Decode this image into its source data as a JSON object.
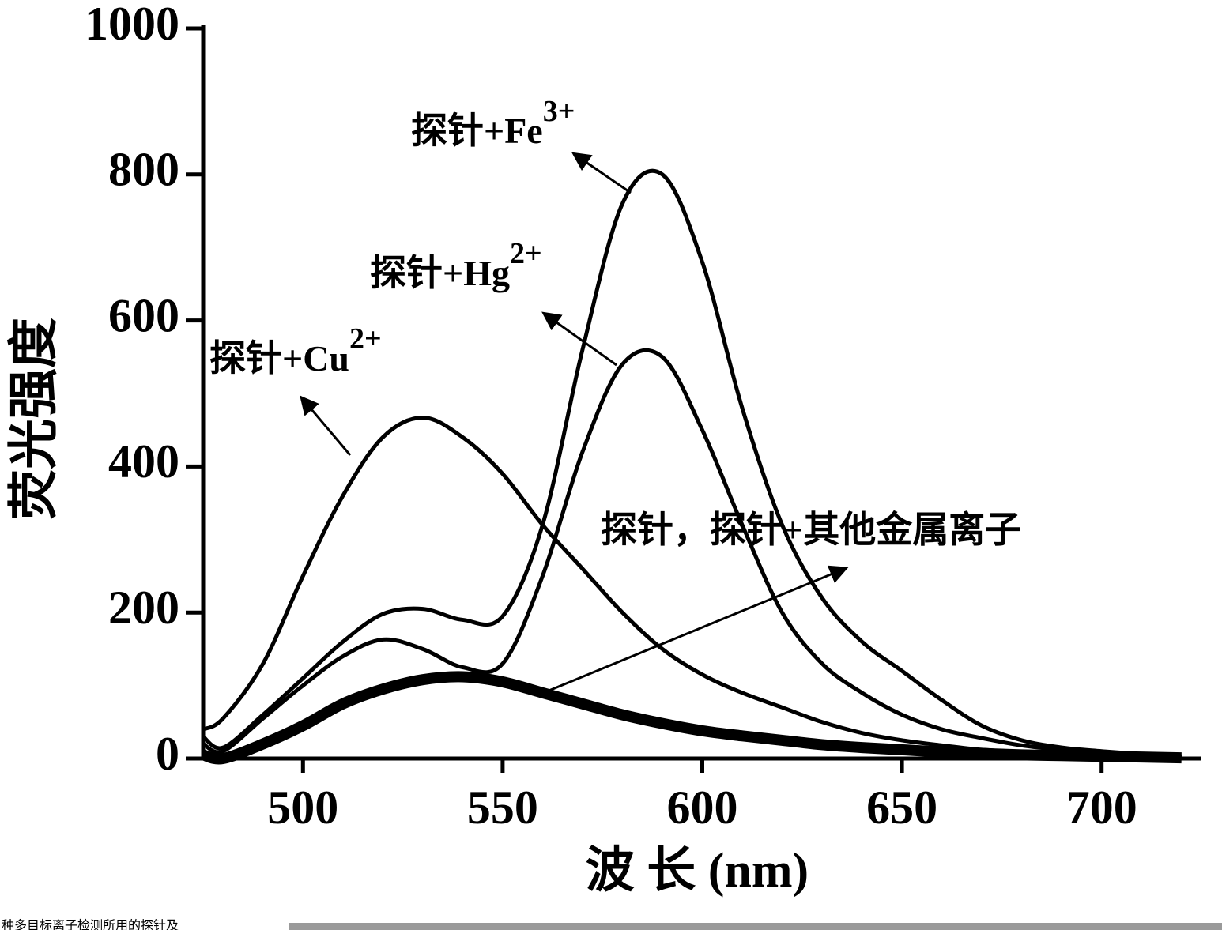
{
  "chart_data": {
    "type": "line",
    "x_label": "波 长 (nm)",
    "y_label": "荧光强度",
    "x": [
      475,
      480,
      490,
      500,
      510,
      520,
      530,
      540,
      550,
      560,
      570,
      580,
      590,
      600,
      610,
      620,
      630,
      640,
      650,
      660,
      670,
      680,
      690,
      700,
      710,
      720
    ],
    "series": [
      {
        "name": "探针+Fe",
        "sup": "3+",
        "color": "#000000",
        "width": 5,
        "values": [
          30,
          15,
          60,
          110,
          160,
          198,
          205,
          190,
          195,
          320,
          560,
          760,
          800,
          680,
          480,
          320,
          220,
          160,
          120,
          80,
          45,
          25,
          15,
          10,
          6,
          3
        ]
      },
      {
        "name": "探针+Hg",
        "sup": "2+",
        "color": "#000000",
        "width": 5,
        "values": [
          20,
          10,
          55,
          100,
          140,
          163,
          150,
          125,
          130,
          250,
          420,
          540,
          550,
          450,
          320,
          200,
          130,
          90,
          60,
          40,
          28,
          18,
          12,
          8,
          5,
          2
        ]
      },
      {
        "name": "探针+Cu",
        "sup": "2+",
        "color": "#000000",
        "width": 5,
        "values": [
          40,
          55,
          130,
          250,
          360,
          440,
          467,
          440,
          390,
          320,
          260,
          200,
          150,
          115,
          90,
          70,
          50,
          35,
          25,
          18,
          12,
          9,
          7,
          5,
          3,
          2
        ]
      },
      {
        "name": "探针，探针+其他金属离子",
        "color": "#000000",
        "width": 14,
        "values": [
          5,
          0,
          20,
          45,
          75,
          95,
          108,
          112,
          105,
          90,
          75,
          60,
          48,
          38,
          31,
          25,
          19,
          15,
          12,
          9,
          7,
          5,
          4,
          3,
          2,
          1
        ]
      }
    ],
    "xlim": [
      475,
      725
    ],
    "xticks": [
      500,
      550,
      600,
      650,
      700
    ],
    "ylim": [
      0,
      1000
    ],
    "yticks": [
      0,
      200,
      400,
      600,
      800,
      1000
    ],
    "caption": "种多目标离子检测所用的探针及"
  }
}
